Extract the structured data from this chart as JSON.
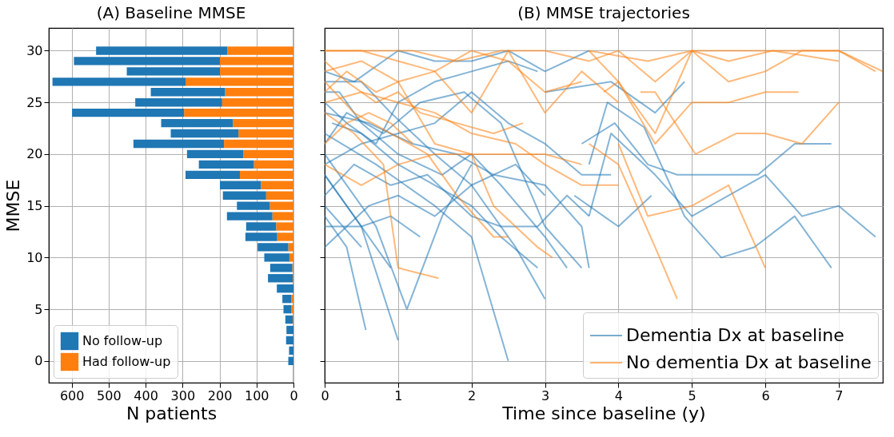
{
  "chart_data": [
    {
      "type": "bar",
      "title": "(A) Baseline MMSE",
      "xlabel": "N patients",
      "ylabel": "MMSE",
      "orientation": "horizontal",
      "stacked": true,
      "x": [
        30,
        29,
        28,
        27,
        26,
        25,
        24,
        23,
        22,
        21,
        20,
        19,
        18,
        17,
        16,
        15,
        14,
        13,
        12,
        11,
        10,
        9,
        8,
        7,
        6,
        5,
        4,
        3,
        2,
        1,
        0
      ],
      "series": [
        {
          "name": "Had follow-up",
          "color": "#ff7f0e",
          "values": [
            179,
            199,
            199,
            292,
            185,
            193,
            296,
            164,
            149,
            188,
            136,
            107,
            145,
            88,
            74,
            64,
            57,
            47,
            44,
            14,
            11,
            3,
            2,
            null,
            6,
            6,
            2,
            0,
            0,
            0,
            0
          ]
        },
        {
          "name": "No follow-up",
          "color": "#1f77b4",
          "values": [
            355,
            395,
            252,
            360,
            201,
            235,
            303,
            194,
            183,
            245,
            152,
            149,
            147,
            111,
            117,
            89,
            123,
            81,
            86,
            83,
            68,
            60,
            67,
            45,
            24,
            21,
            20,
            19,
            20,
            12,
            14
          ]
        }
      ],
      "xlim": [
        662,
        0
      ],
      "xticks": [
        600,
        500,
        400,
        300,
        200,
        100,
        0
      ],
      "ylim": [
        -2.1,
        32.2
      ],
      "yticks": [
        0,
        5,
        10,
        15,
        20,
        25,
        30
      ],
      "grid": true,
      "legend": "bottom left"
    },
    {
      "type": "line",
      "title": "(B) MMSE trajectories",
      "xlabel": "Time since baseline (y)",
      "xlim": [
        0,
        7.6
      ],
      "xticks": [
        0,
        1,
        2,
        3,
        4,
        5,
        6,
        7
      ],
      "ylim": [
        -2.1,
        32.2
      ],
      "yticks": [
        0,
        5,
        10,
        15,
        20,
        25,
        30
      ],
      "grid": true,
      "legend": "bottom right",
      "tick_labels": "x",
      "series": [
        {
          "name": "Dementia Dx at baseline",
          "color": "#1f77b4",
          "x": [
            0,
            0.5,
            0.9,
            1.5,
            2.0,
            2.6,
            3.0
          ],
          "values": [
            27,
            27,
            24,
            20,
            17,
            11,
            6
          ]
        },
        {
          "color": "#1f77b4",
          "x": [
            0,
            0.7,
            1.5,
            2.0,
            2.5
          ],
          "values": [
            22,
            19,
            15,
            12,
            0
          ]
        },
        {
          "color": "#1f77b4",
          "x": [
            0,
            0.3,
            0.56
          ],
          "values": [
            14,
            11,
            3
          ]
        },
        {
          "color": "#1f77b4",
          "x": [
            0,
            0.5,
            1.0
          ],
          "values": [
            18,
            13,
            2
          ]
        },
        {
          "color": "#1f77b4",
          "x": [
            0,
            0.7,
            1.12,
            1.6,
            2.0
          ],
          "values": [
            20,
            13,
            5,
            14,
            19
          ]
        },
        {
          "color": "#1f77b4",
          "x": [
            0,
            0.4,
            1.0,
            1.5,
            2.0,
            2.5,
            3.0,
            3.6
          ],
          "values": [
            28,
            27,
            30,
            29,
            29,
            30,
            28,
            30
          ]
        },
        {
          "color": "#1f77b4",
          "x": [
            0,
            0.3,
            0.7,
            1.0,
            1.5,
            2.0,
            2.5,
            2.9
          ],
          "values": [
            25,
            23,
            21,
            25,
            27,
            28,
            29,
            28
          ]
        },
        {
          "color": "#1f77b4",
          "x": [
            0,
            0.5,
            1.0,
            1.5,
            2.0,
            2.5,
            3.0,
            3.5,
            3.9
          ],
          "values": [
            19,
            21,
            22,
            23,
            26,
            23,
            21,
            18,
            18
          ]
        },
        {
          "color": "#1f77b4",
          "x": [
            0,
            0.3,
            0.6,
            1.0,
            1.5,
            2.0,
            2.6,
            3.0
          ],
          "values": [
            11,
            13,
            15,
            16,
            14,
            17,
            19,
            16
          ]
        },
        {
          "color": "#1f77b4",
          "x": [
            0,
            0.5,
            0.9,
            1.3
          ],
          "values": [
            13,
            13,
            14,
            12
          ]
        },
        {
          "color": "#1f77b4",
          "x": [
            0.1,
            0.5,
            1.0,
            1.5,
            2.0,
            2.4,
            2.9
          ],
          "values": [
            23,
            22,
            19,
            17,
            15,
            12,
            9
          ]
        },
        {
          "color": "#1f77b4",
          "x": [
            0,
            0.6,
            1.2,
            1.8,
            2.3,
            3.0,
            3.5,
            3.6
          ],
          "values": [
            24,
            23,
            21,
            20,
            18,
            17,
            13,
            9
          ]
        },
        {
          "color": "#1f77b4",
          "x": [
            0,
            0.3,
            0.8,
            1.3,
            1.9,
            2.4,
            3.0,
            3.5
          ],
          "values": [
            21,
            24,
            22,
            25,
            26,
            23,
            13,
            9
          ]
        },
        {
          "color": "#1f77b4",
          "x": [
            0,
            0.4,
            0.9,
            1.4,
            2.0,
            2.4,
            2.9,
            3.3,
            3.6
          ],
          "values": [
            16,
            19,
            17,
            18,
            14,
            13,
            13,
            16,
            14
          ]
        },
        {
          "color": "#1f77b4",
          "x": [
            0,
            0.2,
            0.5,
            1.0,
            1.6,
            2.0,
            2.4,
            3.0,
            3.3
          ],
          "values": [
            26,
            26,
            23,
            20,
            18,
            20,
            17,
            12,
            9
          ]
        },
        {
          "color": "#1f77b4",
          "x": [
            0,
            0.5
          ],
          "values": [
            15,
            11
          ]
        },
        {
          "color": "#1f77b4",
          "x": [
            0,
            0.9
          ],
          "values": [
            18,
            9
          ]
        },
        {
          "color": "#1f77b4",
          "x": [
            3.0,
            3.9,
            4.5,
            4.9
          ],
          "values": [
            26,
            27,
            24,
            27
          ]
        },
        {
          "color": "#1f77b4",
          "x": [
            3.6,
            3.85,
            4.35,
            4.9,
            5.4,
            5.85,
            6.4,
            6.9
          ],
          "values": [
            19,
            25,
            22.6,
            14,
            10,
            11,
            14,
            9
          ]
        },
        {
          "color": "#1f77b4",
          "x": [
            3.5,
            3.95,
            4.4,
            4.8,
            5.9,
            6.4,
            6.9
          ],
          "values": [
            21,
            23,
            19,
            18,
            18,
            21,
            21
          ]
        },
        {
          "color": "#1f77b4",
          "x": [
            3.6,
            3.9,
            4.5,
            5.0,
            6.0,
            6.5,
            7.0,
            7.5
          ],
          "values": [
            14,
            22,
            18,
            14,
            18,
            14,
            15,
            12
          ]
        },
        {
          "color": "#1f77b4",
          "x": [
            3.4,
            4.0,
            4.45
          ],
          "values": [
            16,
            13,
            16
          ]
        },
        {
          "name": "No dementia Dx at baseline",
          "color": "#ff7f0e",
          "x": [
            0,
            0.5,
            1.0,
            1.5,
            2.0,
            2.5,
            3.0,
            3.5
          ],
          "values": [
            30,
            30,
            29,
            28,
            30,
            29,
            26,
            27
          ]
        },
        {
          "color": "#ff7f0e",
          "x": [
            0,
            0.3,
            0.7,
            1.0,
            1.3,
            1.8,
            2.3,
            2.7
          ],
          "values": [
            29,
            27,
            25,
            26,
            24,
            23,
            22,
            23
          ]
        },
        {
          "color": "#ff7f0e",
          "x": [
            0,
            0.4,
            0.9,
            1.4,
            1.8,
            2.3,
            2.5
          ],
          "values": [
            27,
            24,
            22,
            20,
            16,
            12,
            12
          ]
        },
        {
          "color": "#ff7f0e",
          "x": [
            0,
            0.4,
            0.8,
            1.0,
            1.55
          ],
          "values": [
            24,
            22,
            19,
            9,
            8
          ]
        },
        {
          "color": "#ff7f0e",
          "x": [
            0,
            0.5,
            1.0,
            1.5,
            2.0,
            2.5,
            3.0,
            3.5
          ],
          "values": [
            19,
            17,
            19,
            20,
            20,
            20,
            20,
            19
          ]
        },
        {
          "color": "#ff7f0e",
          "x": [
            0,
            0.3,
            0.7,
            1.0,
            1.5,
            2.0,
            2.3,
            2.9,
            3.1
          ],
          "values": [
            26,
            28,
            26,
            27,
            21,
            20,
            15,
            11,
            10
          ]
        },
        {
          "color": "#ff7f0e",
          "x": [
            0,
            0.5,
            1.0,
            1.5,
            2.0,
            2.5,
            3.0,
            3.5,
            4.0
          ],
          "values": [
            28,
            29,
            27,
            28,
            24,
            30,
            24,
            28,
            25
          ]
        },
        {
          "color": "#ff7f0e",
          "x": [
            0,
            0.3,
            0.6,
            0.9,
            1.2
          ],
          "values": [
            21,
            23,
            24,
            23,
            21
          ]
        },
        {
          "color": "#ff7f0e",
          "x": [
            0,
            0.6,
            1.2,
            1.8,
            2.4,
            3.0,
            3.6,
            4.0
          ],
          "values": [
            30,
            30,
            30,
            29,
            30,
            30,
            29,
            30
          ]
        },
        {
          "color": "#ff7f0e",
          "x": [
            0,
            0.5,
            1.0,
            1.5,
            2.0,
            2.6,
            3.0,
            3.5,
            4.0
          ],
          "values": [
            25,
            26,
            25,
            24,
            22,
            21,
            19,
            17,
            17
          ]
        },
        {
          "color": "#ff7f0e",
          "x": [
            4.0,
            4.5,
            5.0,
            7.0,
            7.6
          ],
          "values": [
            30,
            27,
            30,
            30,
            28
          ]
        },
        {
          "color": "#ff7f0e",
          "x": [
            3.6,
            4.0,
            4.5,
            5.0,
            5.5,
            6.0,
            6.5,
            7.0,
            7.5
          ],
          "values": [
            30,
            27,
            22,
            30,
            27,
            28,
            30,
            30,
            28
          ]
        },
        {
          "color": "#ff7f0e",
          "x": [
            3.8,
            4.0,
            4.5,
            5.0,
            5.5,
            6.0,
            6.45
          ],
          "values": [
            26,
            27,
            21,
            25,
            25,
            26,
            26
          ]
        },
        {
          "color": "#ff7f0e",
          "x": [
            4.0,
            4.4,
            5.0,
            5.5,
            6.0
          ],
          "values": [
            21,
            14,
            15,
            17,
            9
          ]
        },
        {
          "color": "#ff7f0e",
          "x": [
            3.6,
            4.0,
            4.5,
            4.8
          ],
          "values": [
            21,
            19,
            11,
            6
          ]
        },
        {
          "color": "#ff7f0e",
          "x": [
            4.3,
            4.5,
            5.05,
            5.6,
            6.0,
            6.5,
            7.0
          ],
          "values": [
            26,
            26,
            20,
            22,
            22,
            21,
            25
          ]
        },
        {
          "color": "#ff7f0e",
          "x": [
            3.6,
            4.4,
            5.0,
            5.5,
            6.1,
            7.0
          ],
          "values": [
            30,
            29,
            30,
            29,
            30,
            29
          ]
        }
      ]
    }
  ]
}
